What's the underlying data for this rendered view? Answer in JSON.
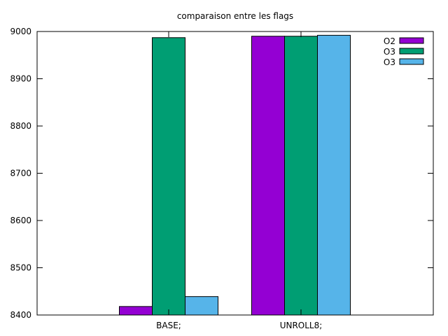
{
  "chart_data": {
    "type": "bar",
    "title": "comparaison entre les flags",
    "xlabel": "",
    "ylabel": "",
    "categories": [
      "BASE;",
      "UNROLL8;"
    ],
    "ylim": [
      8400,
      9000
    ],
    "yticks": [
      8400,
      8500,
      8600,
      8700,
      8800,
      8900,
      9000
    ],
    "grid": false,
    "legend_position": "top-right",
    "series": [
      {
        "name": "O2",
        "color": "#9400d3",
        "values": [
          8418,
          8990
        ]
      },
      {
        "name": "O3",
        "color": "#009e73",
        "values": [
          8987,
          8990
        ]
      },
      {
        "name": "O3",
        "color": "#56b4e9",
        "values": [
          8439,
          8992
        ]
      }
    ]
  }
}
